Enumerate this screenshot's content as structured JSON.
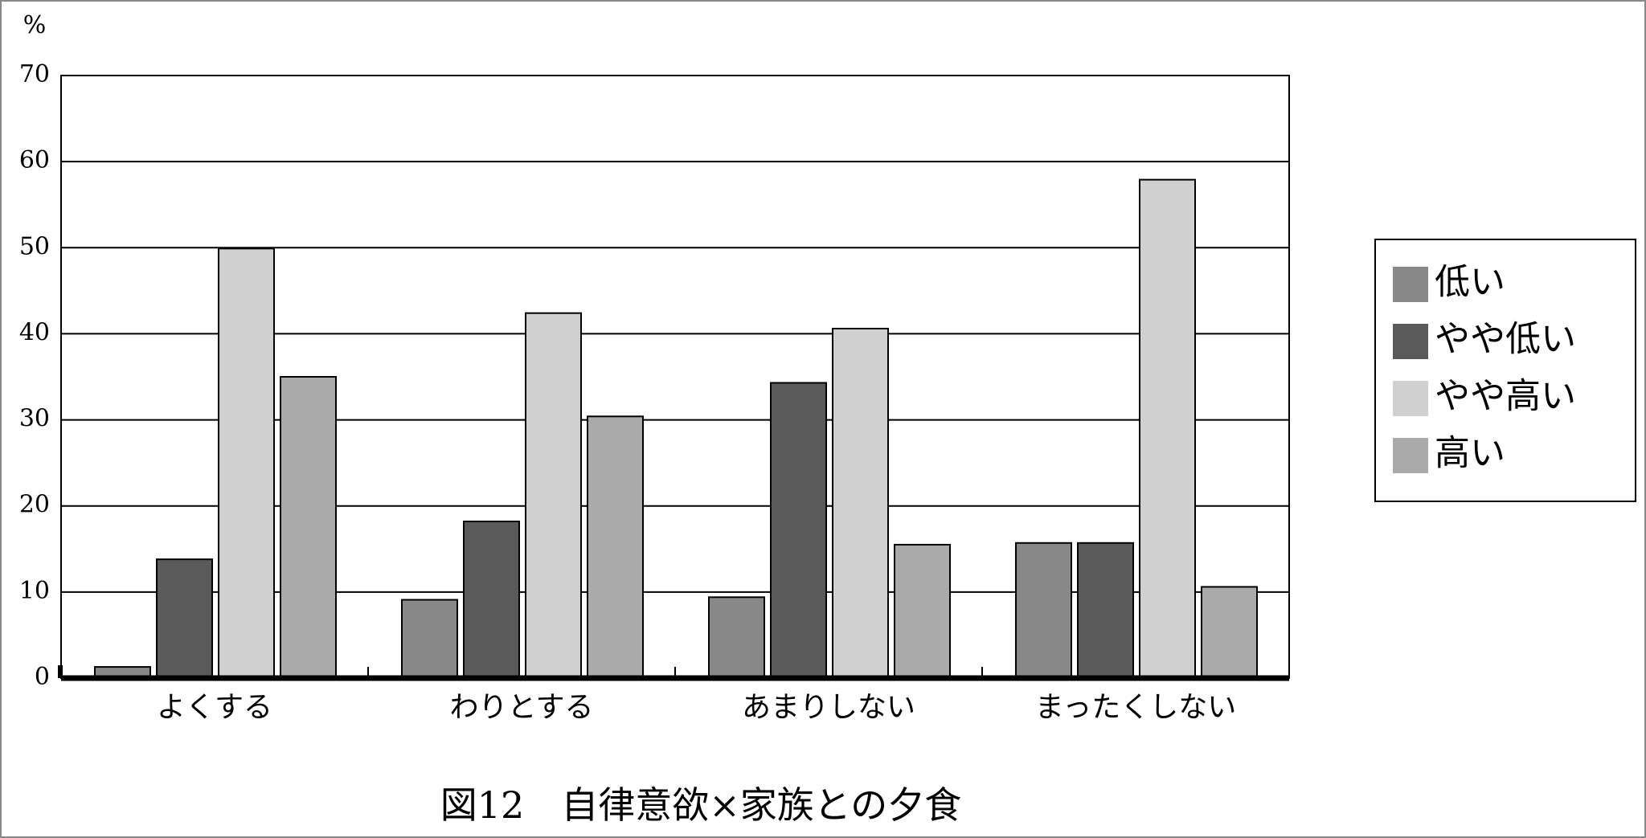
{
  "chart_data": {
    "type": "bar",
    "title": "図12　自律意欲×家族との夕食",
    "ylabel": "%",
    "categories": [
      "よくする",
      "わりとする",
      "あまりしない",
      "まったくしない"
    ],
    "series": [
      {
        "name": "低い",
        "color": "#888888",
        "values": [
          1.3,
          9.1,
          9.4,
          15.7
        ]
      },
      {
        "name": "やや低い",
        "color": "#5a5a5a",
        "values": [
          13.8,
          18.2,
          34.3,
          15.7
        ]
      },
      {
        "name": "やや高い",
        "color": "#d0d0d0",
        "values": [
          49.9,
          42.4,
          40.6,
          57.9
        ]
      },
      {
        "name": "高い",
        "color": "#aaaaaa",
        "values": [
          35.0,
          30.4,
          15.5,
          10.6
        ]
      }
    ],
    "ylim": [
      0,
      70
    ],
    "yticks": [
      0,
      10,
      20,
      30,
      40,
      50,
      60,
      70
    ],
    "grid": true,
    "legend": "right"
  }
}
